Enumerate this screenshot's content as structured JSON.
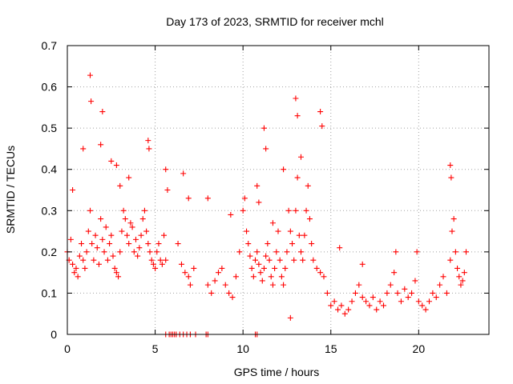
{
  "chart_data": {
    "type": "scatter",
    "title": "Day 173 of 2023, SRMTID for receiver mchl",
    "xlabel": "GPS time / hours",
    "ylabel": "SRMTID / TECUs",
    "xlim": [
      0,
      24
    ],
    "ylim": [
      0,
      0.7
    ],
    "x_ticks": [
      0,
      5,
      10,
      15,
      20
    ],
    "x_tick_labels": [
      "0",
      "5",
      "10",
      "15",
      "20"
    ],
    "y_ticks": [
      0,
      0.1,
      0.2,
      0.3,
      0.4,
      0.5,
      0.6,
      0.7
    ],
    "y_tick_labels": [
      "0",
      "0.1",
      "0.2",
      "0.3",
      "0.4",
      "0.5",
      "0.6",
      "0.7"
    ],
    "grid": true,
    "marker": "plus",
    "series": [
      {
        "name": "mchl",
        "color": "#ff0000",
        "x": [
          0.0,
          0.1,
          0.2,
          0.3,
          0.4,
          0.5,
          0.6,
          0.7,
          0.8,
          0.9,
          1.0,
          1.1,
          1.2,
          1.3,
          1.4,
          1.5,
          1.6,
          1.7,
          1.8,
          1.9,
          2.0,
          2.1,
          2.2,
          2.3,
          2.4,
          2.5,
          2.6,
          2.7,
          2.8,
          2.9,
          3.0,
          3.1,
          3.2,
          3.3,
          3.4,
          3.5,
          3.6,
          3.7,
          3.8,
          3.9,
          4.0,
          4.1,
          4.2,
          4.3,
          4.4,
          4.5,
          4.6,
          4.7,
          4.8,
          4.9,
          5.0,
          5.1,
          5.2,
          5.3,
          5.4,
          5.5,
          5.6,
          6.3,
          6.5,
          6.7,
          6.9,
          7.0,
          7.2,
          8.0,
          8.2,
          8.4,
          8.6,
          8.8,
          9.0,
          9.2,
          9.4,
          9.6,
          9.8,
          10.0,
          10.1,
          10.2,
          10.3,
          10.4,
          10.5,
          10.6,
          10.7,
          10.8,
          10.9,
          11.0,
          11.1,
          11.2,
          11.3,
          11.4,
          11.5,
          11.6,
          11.7,
          11.8,
          11.9,
          12.0,
          12.1,
          12.2,
          12.3,
          12.4,
          12.5,
          12.6,
          12.7,
          12.8,
          12.9,
          13.0,
          13.1,
          13.2,
          13.3,
          13.4,
          13.5,
          13.6,
          13.7,
          13.8,
          13.9,
          14.0,
          14.2,
          14.4,
          14.6,
          14.8,
          15.0,
          15.2,
          15.4,
          15.6,
          15.8,
          16.0,
          16.2,
          16.4,
          16.6,
          16.8,
          17.0,
          17.2,
          17.4,
          17.6,
          17.8,
          18.0,
          18.2,
          18.4,
          18.6,
          18.8,
          19.0,
          19.2,
          19.4,
          19.6,
          19.8,
          20.0,
          20.2,
          20.4,
          20.6,
          20.8,
          21.0,
          21.2,
          21.4,
          21.6,
          21.8,
          21.9,
          22.0,
          22.1,
          22.2,
          22.3,
          22.4,
          22.5,
          22.6,
          22.7,
          1.3,
          1.35,
          2.0,
          13.0,
          13.1,
          21.8,
          21.85,
          4.6,
          4.65,
          11.2,
          11.3,
          14.4,
          14.5,
          1.9,
          2.8,
          3.5,
          12.3,
          13.3,
          3.0,
          0.3,
          0.9,
          5.6,
          5.7,
          6.6,
          10.8,
          10.9,
          6.9,
          8.0,
          15.5,
          19.9,
          2.5,
          9.3,
          11.7,
          16.8,
          18.7,
          12.7
        ],
        "y": [
          0.2,
          0.18,
          0.23,
          0.17,
          0.15,
          0.16,
          0.14,
          0.19,
          0.22,
          0.18,
          0.16,
          0.2,
          0.25,
          0.3,
          0.22,
          0.18,
          0.24,
          0.21,
          0.17,
          0.28,
          0.23,
          0.2,
          0.26,
          0.18,
          0.22,
          0.24,
          0.19,
          0.16,
          0.15,
          0.14,
          0.2,
          0.25,
          0.3,
          0.28,
          0.24,
          0.22,
          0.27,
          0.26,
          0.2,
          0.23,
          0.19,
          0.21,
          0.24,
          0.28,
          0.3,
          0.25,
          0.22,
          0.2,
          0.18,
          0.17,
          0.16,
          0.2,
          0.22,
          0.18,
          0.17,
          0.24,
          0.18,
          0.22,
          0.17,
          0.15,
          0.14,
          0.12,
          0.16,
          0.12,
          0.1,
          0.13,
          0.15,
          0.16,
          0.12,
          0.1,
          0.09,
          0.14,
          0.2,
          0.3,
          0.33,
          0.25,
          0.22,
          0.19,
          0.16,
          0.14,
          0.18,
          0.2,
          0.17,
          0.15,
          0.13,
          0.16,
          0.19,
          0.22,
          0.18,
          0.14,
          0.12,
          0.16,
          0.2,
          0.25,
          0.18,
          0.14,
          0.12,
          0.16,
          0.2,
          0.3,
          0.25,
          0.22,
          0.18,
          0.3,
          0.38,
          0.24,
          0.2,
          0.18,
          0.24,
          0.3,
          0.36,
          0.28,
          0.22,
          0.18,
          0.16,
          0.15,
          0.14,
          0.1,
          0.07,
          0.08,
          0.06,
          0.07,
          0.05,
          0.06,
          0.08,
          0.1,
          0.12,
          0.09,
          0.08,
          0.07,
          0.09,
          0.06,
          0.08,
          0.07,
          0.1,
          0.12,
          0.15,
          0.1,
          0.08,
          0.11,
          0.09,
          0.1,
          0.13,
          0.08,
          0.07,
          0.06,
          0.08,
          0.1,
          0.09,
          0.12,
          0.14,
          0.1,
          0.18,
          0.25,
          0.28,
          0.2,
          0.16,
          0.14,
          0.12,
          0.13,
          0.15,
          0.2,
          0.628,
          0.565,
          0.54,
          0.572,
          0.53,
          0.41,
          0.38,
          0.47,
          0.45,
          0.5,
          0.45,
          0.54,
          0.505,
          0.46,
          0.41,
          0.38,
          0.4,
          0.43,
          0.36,
          0.35,
          0.45,
          0.4,
          0.35,
          0.39,
          0.36,
          0.32,
          0.33,
          0.33,
          0.21,
          0.2,
          0.42,
          0.29,
          0.27,
          0.17,
          0.2,
          0.04
        ],
        "x_zero": [
          5.6,
          5.8,
          5.9,
          6.0,
          6.1,
          6.2,
          6.4,
          6.6,
          6.8,
          7.0,
          7.3,
          7.9,
          8.0,
          10.7,
          10.8
        ]
      }
    ]
  }
}
